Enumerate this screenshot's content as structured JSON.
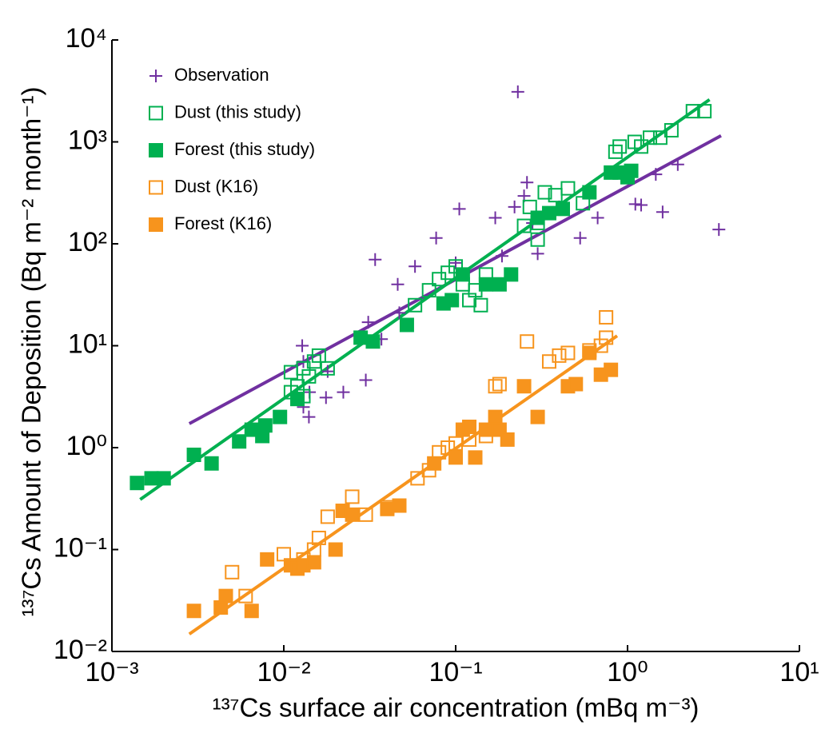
{
  "chart_data": {
    "type": "scatter",
    "xlabel": "¹³⁷Cs  surface air concentration (mBq m⁻³)",
    "ylabel": "¹³⁷Cs Amount of Deposition (Bq m⁻² month⁻¹)",
    "xscale": "log",
    "yscale": "log",
    "xlim": [
      0.001,
      10
    ],
    "ylim": [
      0.01,
      10000
    ],
    "xticks": [
      {
        "value": 0.001,
        "label": "10⁻³"
      },
      {
        "value": 0.01,
        "label": "10⁻²"
      },
      {
        "value": 0.1,
        "label": "10⁻¹"
      },
      {
        "value": 1,
        "label": "10⁰"
      },
      {
        "value": 10,
        "label": "10¹"
      }
    ],
    "yticks": [
      {
        "value": 0.01,
        "label": "10⁻²"
      },
      {
        "value": 0.1,
        "label": "10⁻¹"
      },
      {
        "value": 1,
        "label": "10⁰"
      },
      {
        "value": 10,
        "label": "10¹"
      },
      {
        "value": 100,
        "label": "10²"
      },
      {
        "value": 1000,
        "label": "10³"
      },
      {
        "value": 10000,
        "label": "10⁴"
      }
    ],
    "legend": "upper left",
    "series": [
      {
        "name": "Observation",
        "color": "#7030a0",
        "marker": "plus",
        "x": [
          0.23,
          0.25,
          0.26,
          0.28,
          0.3,
          0.22,
          0.17,
          0.105,
          0.077,
          0.058,
          0.034,
          0.046,
          0.047,
          0.031,
          0.037,
          0.0128,
          0.013,
          0.0141,
          0.013,
          0.014,
          0.0176,
          0.018,
          0.0222,
          0.03,
          0.1,
          0.186,
          0.67,
          0.53,
          1.11,
          1.2,
          1.6,
          1.46,
          1.96,
          3.4,
          0.4
        ],
        "y": [
          3100,
          295,
          400,
          160,
          80,
          230,
          180,
          220,
          114,
          60,
          70,
          40,
          21,
          17,
          11.6,
          10,
          7,
          3.5,
          2.5,
          2,
          3.1,
          5.6,
          3.5,
          4.6,
          65,
          76,
          180,
          114,
          245,
          240,
          205,
          480,
          600,
          138,
          230
        ]
      },
      {
        "name": "Dust (this study)",
        "color": "#00b050",
        "marker": "open-square",
        "x": [
          0.011,
          0.012,
          0.013,
          0.014,
          0.015,
          0.016,
          0.018,
          0.011,
          0.013,
          0.058,
          0.07,
          0.08,
          0.09,
          0.1,
          0.11,
          0.12,
          0.13,
          0.14,
          0.15,
          0.25,
          0.27,
          0.3,
          0.3,
          0.33,
          0.38,
          0.45,
          0.55,
          0.85,
          0.9,
          1.1,
          1.2,
          1.35,
          1.55,
          1.8,
          2.4,
          2.8
        ],
        "y": [
          5.5,
          4,
          6,
          5,
          7,
          8,
          6,
          3.5,
          3.2,
          25,
          35,
          45,
          52,
          60,
          40,
          28,
          35,
          25,
          50,
          150,
          230,
          110,
          160,
          320,
          300,
          350,
          250,
          800,
          900,
          1000,
          900,
          1100,
          1100,
          1300,
          2000,
          2000
        ]
      },
      {
        "name": "Forest (this study)",
        "color": "#00b050",
        "marker": "filled-square",
        "x": [
          0.0014,
          0.0017,
          0.002,
          0.003,
          0.0038,
          0.0055,
          0.0065,
          0.0075,
          0.0078,
          0.0095,
          0.012,
          0.028,
          0.033,
          0.052,
          0.085,
          0.095,
          0.11,
          0.15,
          0.18,
          0.21,
          0.3,
          0.35,
          0.42,
          0.6,
          0.8,
          0.9,
          1.0,
          1.05
        ],
        "y": [
          0.45,
          0.5,
          0.5,
          0.85,
          0.7,
          1.15,
          1.5,
          1.3,
          1.65,
          2,
          3,
          12,
          11,
          16,
          26,
          28,
          50,
          40,
          40,
          50,
          180,
          200,
          220,
          320,
          500,
          500,
          450,
          520
        ]
      },
      {
        "name": "Dust (K16)",
        "color": "#f7941d",
        "marker": "open-square",
        "x": [
          0.005,
          0.006,
          0.01,
          0.013,
          0.015,
          0.016,
          0.018,
          0.025,
          0.03,
          0.04,
          0.06,
          0.07,
          0.08,
          0.09,
          0.1,
          0.12,
          0.15,
          0.17,
          0.18,
          0.26,
          0.35,
          0.4,
          0.45,
          0.6,
          0.7,
          0.75,
          0.75
        ],
        "y": [
          0.06,
          0.035,
          0.09,
          0.08,
          0.1,
          0.13,
          0.21,
          0.33,
          0.22,
          0.26,
          0.5,
          0.6,
          0.9,
          1.0,
          1.1,
          1.2,
          1.3,
          4,
          4.2,
          11,
          7,
          8,
          8.5,
          9,
          10,
          19,
          12
        ]
      },
      {
        "name": "Forest (K16)",
        "color": "#f7941d",
        "marker": "filled-square",
        "x": [
          0.003,
          0.0043,
          0.0046,
          0.0065,
          0.008,
          0.011,
          0.012,
          0.013,
          0.015,
          0.02,
          0.022,
          0.025,
          0.04,
          0.047,
          0.075,
          0.1,
          0.11,
          0.12,
          0.13,
          0.15,
          0.17,
          0.18,
          0.2,
          0.25,
          0.3,
          0.45,
          0.5,
          0.6,
          0.7,
          0.8
        ],
        "y": [
          0.025,
          0.027,
          0.035,
          0.025,
          0.08,
          0.07,
          0.065,
          0.07,
          0.075,
          0.1,
          0.24,
          0.22,
          0.25,
          0.27,
          0.7,
          0.8,
          1.5,
          1.6,
          0.8,
          1.5,
          2,
          1.5,
          1.2,
          4,
          2,
          4,
          4.2,
          8.5,
          5.2,
          5.8
        ]
      }
    ],
    "fit_lines": [
      {
        "color": "#7030a0",
        "x": [
          0.00282,
          3.5
        ],
        "y": [
          1.72,
          1150
        ]
      },
      {
        "color": "#00b050",
        "x": [
          0.00146,
          3.0
        ],
        "y": [
          0.31,
          2600
        ]
      },
      {
        "color": "#f7941d",
        "x": [
          0.00282,
          0.87
        ],
        "y": [
          0.0148,
          12.5
        ]
      }
    ]
  }
}
